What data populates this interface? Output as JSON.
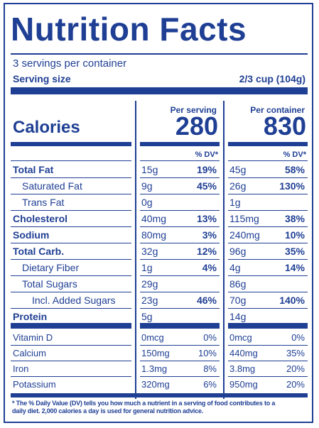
{
  "title": "Nutrition Facts",
  "servings": "3 servings per container",
  "serving_size_label": "Serving size",
  "serving_size_value": "2/3 cup (104g)",
  "per_serving_label": "Per serving",
  "per_container_label": "Per container",
  "calories_label": "Calories",
  "calories_serving": "280",
  "calories_container": "830",
  "dv_header": "% DV*",
  "rows": [
    {
      "name": "Total Fat",
      "bold": true,
      "indent": 0,
      "s_amt": "15g",
      "s_dv": "19%",
      "c_amt": "45g",
      "c_dv": "58%"
    },
    {
      "name": "Saturated Fat",
      "bold": false,
      "indent": 1,
      "s_amt": "9g",
      "s_dv": "45%",
      "c_amt": "26g",
      "c_dv": "130%"
    },
    {
      "name": "Trans Fat",
      "bold": false,
      "indent": 1,
      "s_amt": "0g",
      "s_dv": "",
      "c_amt": "1g",
      "c_dv": ""
    },
    {
      "name": "Cholesterol",
      "bold": true,
      "indent": 0,
      "s_amt": "40mg",
      "s_dv": "13%",
      "c_amt": "115mg",
      "c_dv": "38%"
    },
    {
      "name": "Sodium",
      "bold": true,
      "indent": 0,
      "s_amt": "80mg",
      "s_dv": "3%",
      "c_amt": "240mg",
      "c_dv": "10%"
    },
    {
      "name": "Total Carb.",
      "bold": true,
      "indent": 0,
      "s_amt": "32g",
      "s_dv": "12%",
      "c_amt": "96g",
      "c_dv": "35%"
    },
    {
      "name": "Dietary Fiber",
      "bold": false,
      "indent": 1,
      "s_amt": "1g",
      "s_dv": "4%",
      "c_amt": "4g",
      "c_dv": "14%"
    },
    {
      "name": "Total Sugars",
      "bold": false,
      "indent": 1,
      "s_amt": "29g",
      "s_dv": "",
      "c_amt": "86g",
      "c_dv": ""
    },
    {
      "name": "Incl. Added Sugars",
      "bold": false,
      "indent": 2,
      "s_amt": "23g",
      "s_dv": "46%",
      "c_amt": "70g",
      "c_dv": "140%"
    },
    {
      "name": "Protein",
      "bold": true,
      "indent": 0,
      "s_amt": "5g",
      "s_dv": "",
      "c_amt": "14g",
      "c_dv": ""
    }
  ],
  "vitamins": [
    {
      "name": "Vitamin D",
      "s_amt": "0mcg",
      "s_dv": "0%",
      "c_amt": "0mcg",
      "c_dv": "0%"
    },
    {
      "name": "Calcium",
      "s_amt": "150mg",
      "s_dv": "10%",
      "c_amt": "440mg",
      "c_dv": "35%"
    },
    {
      "name": "Iron",
      "s_amt": "1.3mg",
      "s_dv": "8%",
      "c_amt": "3.8mg",
      "c_dv": "20%"
    },
    {
      "name": "Potassium",
      "s_amt": "320mg",
      "s_dv": "6%",
      "c_amt": "950mg",
      "c_dv": "20%"
    }
  ],
  "footnote_line1": "* The % Daily Value (DV) tells you how much a nutrient in a serving of food contributes to a",
  "footnote_line2": "daily diet. 2,000 calories a day is used for general nutrition advice.",
  "colors": {
    "ink": "#1f3f94",
    "background": "#ffffff"
  }
}
